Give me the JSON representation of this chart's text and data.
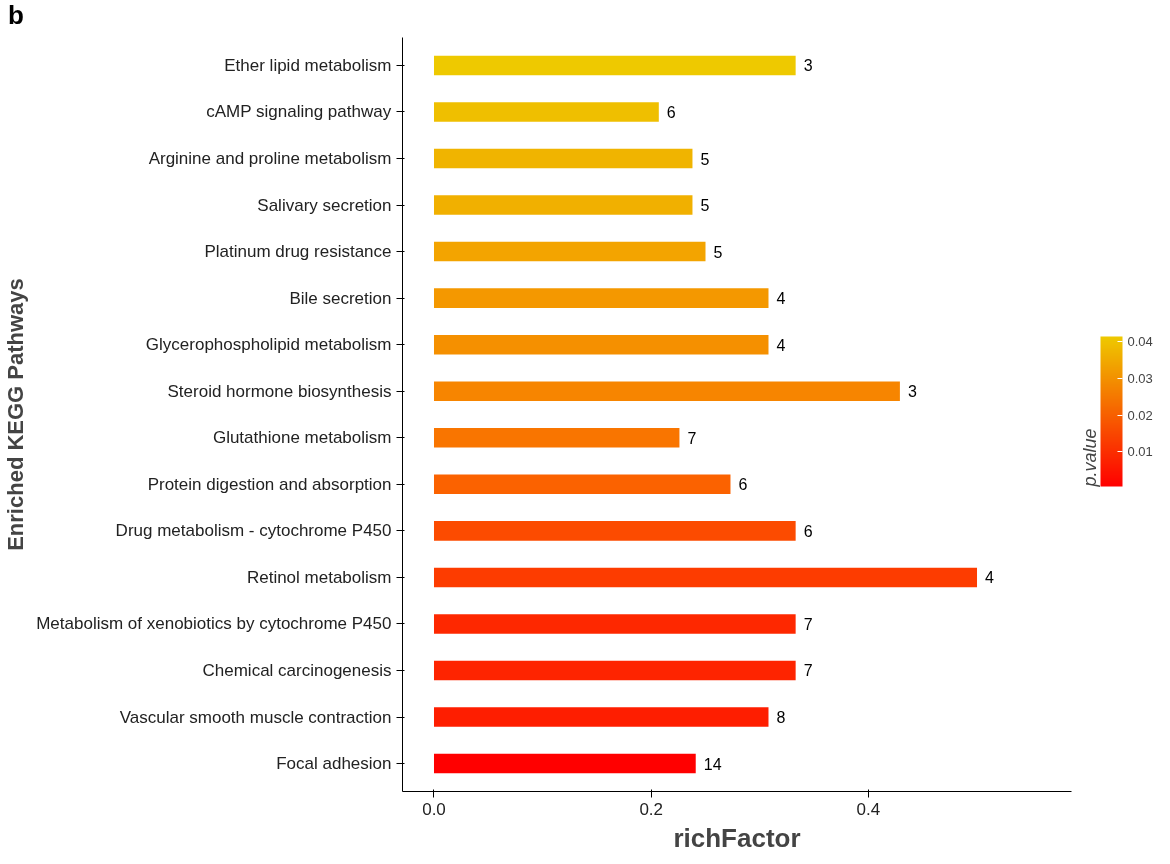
{
  "chart_data": {
    "type": "bar",
    "orientation": "horizontal",
    "xlabel": "richFactor",
    "ylabel": "Enriched KEGG Pathways",
    "clabel": "p.value",
    "annotations": [
      "b",
      {
        "text": "3",
        "x": 0.333,
        "y": "Ether lipid metabolism"
      },
      {
        "text": "6",
        "x": 0.207,
        "y": "cAMP signaling pathway"
      },
      {
        "text": "5",
        "x": 0.238,
        "y": "Arginine and proline metabolism"
      },
      {
        "text": "5",
        "x": 0.238,
        "y": "Salivary secretion"
      },
      {
        "text": "5",
        "x": 0.25,
        "y": "Platinum drug resistance"
      },
      {
        "text": "4",
        "x": 0.308,
        "y": "Bile secretion"
      },
      {
        "text": "4",
        "x": 0.308,
        "y": "Glycerophospholipid metabolism"
      },
      {
        "text": "3",
        "x": 0.429,
        "y": "Steroid hormone biosynthesis"
      },
      {
        "text": "7",
        "x": 0.226,
        "y": "Glutathione metabolism"
      },
      {
        "text": "6",
        "x": 0.273,
        "y": "Protein digestion and absorption"
      },
      {
        "text": "6",
        "x": 0.333,
        "y": "Drug metabolism - cytochrome P450"
      },
      {
        "text": "4",
        "x": 0.5,
        "y": "Retinol metabolism"
      },
      {
        "text": "7",
        "x": 0.333,
        "y": "Metabolism of xenobiotics by cytochrome P450"
      },
      {
        "text": "7",
        "x": 0.333,
        "y": "Chemical carcinogenesis"
      },
      {
        "text": "8",
        "x": 0.308,
        "y": "Vascular smooth muscle contraction"
      },
      {
        "text": "14",
        "x": 0.241,
        "y": "Focal adhesion"
      }
    ],
    "categories": [
      "Ether lipid metabolism",
      "cAMP signaling pathway",
      "Arginine and proline metabolism",
      "Salivary secretion",
      "Platinum drug resistance",
      "Bile secretion",
      "Glycerophospholipid metabolism",
      "Steroid hormone biosynthesis",
      "Glutathione metabolism",
      "Protein digestion and absorption",
      "Drug metabolism - cytochrome P450",
      "Retinol metabolism",
      "Metabolism of xenobiotics by cytochrome P450",
      "Chemical carcinogenesis",
      "Vascular smooth muscle contraction",
      "Focal adhesion"
    ],
    "values": [
      0.333,
      0.207,
      0.238,
      0.238,
      0.25,
      0.308,
      0.308,
      0.429,
      0.226,
      0.273,
      0.333,
      0.5,
      0.333,
      0.333,
      0.308,
      0.241
    ],
    "colors": [
      "#eec900",
      "#efbf00",
      "#f0b400",
      "#f1b000",
      "#f3a400",
      "#f49800",
      "#f59000",
      "#f78500",
      "#f97500",
      "#fb6200",
      "#fc4b00",
      "#fd3c00",
      "#fe2800",
      "#fe2400",
      "#fe1e00",
      "#ff0000"
    ],
    "xlim": [
      -0.029,
      0.587
    ],
    "xticks": [
      {
        "value": 0,
        "label": "0.0"
      },
      0.2,
      0.4
    ],
    "clim": [
      0.0005,
      0.0415
    ],
    "cticks": [
      0.01,
      0.02,
      0.03,
      0.04
    ],
    "grid": false
  }
}
